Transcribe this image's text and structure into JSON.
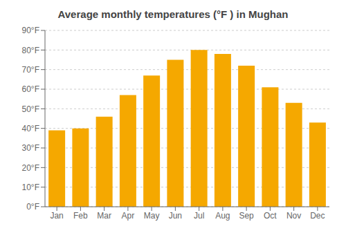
{
  "chart_data": {
    "type": "bar",
    "title": "Average monthly temperatures (°F ) in Mughan",
    "categories": [
      "Jan",
      "Feb",
      "Mar",
      "Apr",
      "May",
      "Jun",
      "Jul",
      "Aug",
      "Sep",
      "Oct",
      "Nov",
      "Dec"
    ],
    "values": [
      39,
      40,
      46,
      57,
      67,
      75,
      80,
      78,
      72,
      61,
      53,
      43
    ],
    "color": "#F5A800",
    "ylim": [
      0,
      90
    ],
    "yticks": [
      {
        "value": 0,
        "label": "0°F"
      },
      {
        "value": 10,
        "label": "10°F"
      },
      {
        "value": 20,
        "label": "20°F"
      },
      {
        "value": 30,
        "label": "30°F"
      },
      {
        "value": 40,
        "label": "40°F"
      },
      {
        "value": 50,
        "label": "50°F"
      },
      {
        "value": 60,
        "label": "60°F"
      },
      {
        "value": 70,
        "label": "70°F"
      },
      {
        "value": 80,
        "label": "80°F"
      },
      {
        "value": 90,
        "label": "90°F"
      }
    ],
    "grid": true
  }
}
